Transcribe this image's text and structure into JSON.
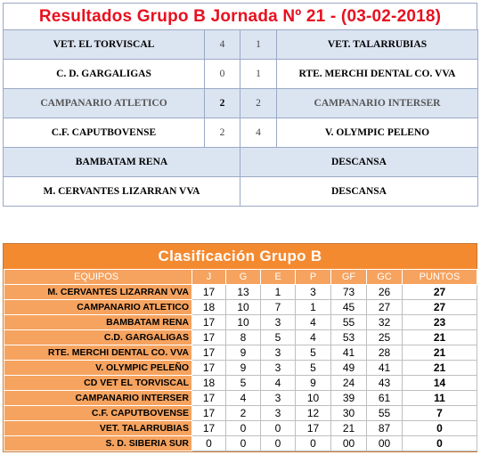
{
  "results": {
    "title": "Resultados Grupo B Jornada Nº 21 -  (03-02-2018)",
    "matches": [
      {
        "home": "VET. EL TORVISCAL",
        "home_score": "4",
        "away_score": "1",
        "away": "VET. TALARRUBIAS"
      },
      {
        "home": "C. D. GARGALIGAS",
        "home_score": "0",
        "away_score": "1",
        "away": "RTE. MERCHI DENTAL CO. VVA"
      },
      {
        "home": "CAMPANARIO ATLETICO",
        "home_score": "2",
        "away_score": "2",
        "away": "CAMPANARIO INTERSER"
      },
      {
        "home": "C.F. CAPUTBOVENSE",
        "home_score": "2",
        "away_score": "4",
        "away": "V. OLYMPIC PELENO"
      }
    ],
    "byes": [
      {
        "team": "BAMBATAM RENA",
        "status": "DESCANSA"
      },
      {
        "team": "M. CERVANTES LIZARRAN VVA",
        "status": "DESCANSA"
      }
    ]
  },
  "standings": {
    "title": "Clasificación Grupo B",
    "headers": [
      "EQUIPOS",
      "J",
      "G",
      "E",
      "P",
      "GF",
      "GC",
      "PUNTOS"
    ],
    "rows": [
      [
        "M. CERVANTES LIZARRAN VVA",
        "17",
        "13",
        "1",
        "3",
        "73",
        "26",
        "27"
      ],
      [
        "CAMPANARIO ATLETICO",
        "18",
        "10",
        "7",
        "1",
        "45",
        "27",
        "27"
      ],
      [
        "BAMBATAM RENA",
        "17",
        "10",
        "3",
        "4",
        "55",
        "32",
        "23"
      ],
      [
        "C.D. GARGALIGAS",
        "17",
        "8",
        "5",
        "4",
        "53",
        "25",
        "21"
      ],
      [
        "RTE. MERCHI DENTAL CO. VVA",
        "17",
        "9",
        "3",
        "5",
        "41",
        "28",
        "21"
      ],
      [
        "V. OLYMPIC PELEÑO",
        "17",
        "9",
        "3",
        "5",
        "49",
        "41",
        "21"
      ],
      [
        "CD VET EL TORVISCAL",
        "18",
        "5",
        "4",
        "9",
        "24",
        "43",
        "14"
      ],
      [
        "CAMPANARIO INTERSER",
        "17",
        "4",
        "3",
        "10",
        "39",
        "61",
        "11"
      ],
      [
        "C.F. CAPUTBOVENSE",
        "17",
        "2",
        "3",
        "12",
        "30",
        "55",
        "7"
      ],
      [
        "VET. TALARRUBIAS",
        "17",
        "0",
        "0",
        "17",
        "21",
        "87",
        "0"
      ],
      [
        "S. D. SIBERIA SUR",
        "0",
        "0",
        "0",
        "0",
        "00",
        "00",
        "0"
      ]
    ]
  },
  "colors": {
    "results_title": "#e8101f",
    "results_shade": "#dbe4f1",
    "standings_header": "#f48a30",
    "standings_team_cell": "#f6a35f"
  }
}
